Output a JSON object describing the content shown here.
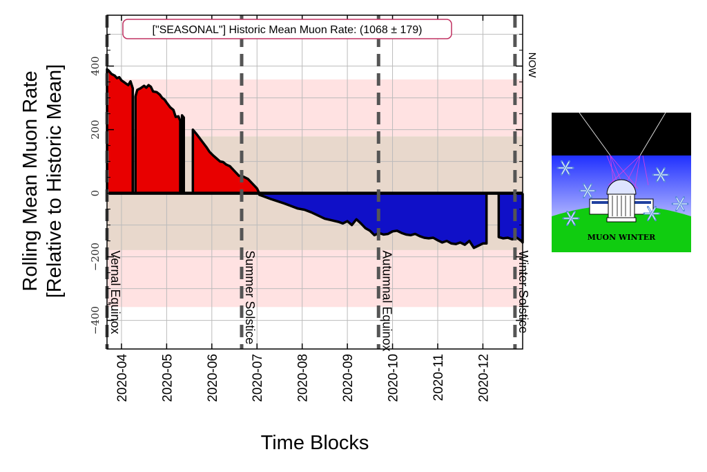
{
  "chart_data": {
    "type": "area",
    "title": "[\"SEASONAL\"] Historic Mean Muon Rate: (1068 ± 179)",
    "xlabel": "Time Blocks",
    "ylabel_line1": "Rolling Mean Muon Rate",
    "ylabel_line2": "[Relative to Historic Mean]",
    "x_tick_labels": [
      "2020-04",
      "2020-05",
      "2020-06",
      "2020-07",
      "2020-08",
      "2020-09",
      "2020-10",
      "2020-11",
      "2020-12"
    ],
    "x_tick_months": [
      3,
      4,
      5,
      6,
      7,
      8,
      9,
      10,
      11
    ],
    "xlim_months": [
      2.68,
      11.88
    ],
    "ylim": [
      -490,
      560
    ],
    "y_ticks": [
      -400,
      -200,
      0,
      200,
      400
    ],
    "y_tick_labels": [
      "−400",
      "−200",
      "0",
      "200",
      "400"
    ],
    "bands": [
      {
        "from": -179,
        "to": 179,
        "color": "#e8d8cc"
      },
      {
        "from": 179,
        "to": 358,
        "color": "#ffe2e2"
      },
      {
        "from": -358,
        "to": -179,
        "color": "#ffe2e2"
      }
    ],
    "markers": [
      {
        "label": "Vernal Equinox",
        "month": 2.68
      },
      {
        "label": "Summer Solstice",
        "month": 5.66
      },
      {
        "label": "Autumnal Equinox",
        "month": 8.69
      },
      {
        "label": "Winter Solstice",
        "month": 11.71
      }
    ],
    "now_label": "NOW",
    "positive_color": "#e80000",
    "negative_color": "#1010c8",
    "grid": true,
    "segments": [
      {
        "x": [
          2.68,
          2.72,
          2.78,
          2.85,
          2.9,
          2.95,
          3.0,
          3.05,
          3.1,
          3.15,
          3.2,
          3.25
        ],
        "y": [
          390,
          385,
          375,
          370,
          362,
          365,
          355,
          350,
          345,
          340,
          352,
          330
        ]
      },
      {
        "x": [
          3.31,
          3.35,
          3.42,
          3.5,
          3.55,
          3.6,
          3.65,
          3.7,
          3.78,
          3.85,
          3.9,
          3.95,
          4.0,
          4.08,
          4.15,
          4.2,
          4.26,
          4.3
        ],
        "y": [
          305,
          325,
          330,
          338,
          332,
          340,
          335,
          320,
          318,
          310,
          300,
          295,
          285,
          270,
          262,
          240,
          242,
          228
        ]
      },
      {
        "x": [
          4.34,
          4.38
        ],
        "y": [
          245,
          238
        ]
      },
      {
        "x": [
          4.58,
          4.65,
          4.72,
          4.8,
          4.88,
          4.95,
          5.02,
          5.1,
          5.18,
          5.25,
          5.32,
          5.4,
          5.5,
          5.6,
          5.7,
          5.8,
          5.9,
          6.0,
          6.05
        ],
        "y": [
          200,
          188,
          175,
          160,
          145,
          130,
          120,
          110,
          100,
          98,
          90,
          85,
          70,
          55,
          52,
          45,
          30,
          15,
          0
        ]
      },
      {
        "x": [
          6.05,
          6.15,
          6.3,
          6.45,
          6.6,
          6.75,
          6.9,
          7.05,
          7.2,
          7.35,
          7.5,
          7.65,
          7.8,
          7.9,
          8.0,
          8.1,
          8.2,
          8.3,
          8.4,
          8.5,
          8.6,
          8.7,
          8.8,
          8.9,
          9.0,
          9.1,
          9.2,
          9.3,
          9.4,
          9.5,
          9.6,
          9.7,
          9.8,
          9.9,
          10.0,
          10.1,
          10.2,
          10.3,
          10.4,
          10.5,
          10.6,
          10.7,
          10.8,
          10.9,
          11.0,
          11.08
        ],
        "y": [
          -5,
          -10,
          -18,
          -25,
          -32,
          -40,
          -48,
          -52,
          -60,
          -70,
          -80,
          -85,
          -90,
          -95,
          -88,
          -100,
          -82,
          -95,
          -110,
          -118,
          -132,
          -125,
          -130,
          -128,
          -120,
          -118,
          -125,
          -130,
          -132,
          -128,
          -135,
          -140,
          -142,
          -140,
          -148,
          -155,
          -150,
          -158,
          -160,
          -155,
          -162,
          -150,
          -172,
          -165,
          -158,
          -158
        ]
      },
      {
        "x": [
          11.35,
          11.45,
          11.55,
          11.65,
          11.75,
          11.85,
          11.88
        ],
        "y": [
          -138,
          -142,
          -140,
          -145,
          -140,
          -150,
          -155
        ]
      }
    ],
    "gaps": [
      [
        3.25,
        3.31
      ],
      [
        4.3,
        4.34
      ],
      [
        4.38,
        4.58
      ],
      [
        11.08,
        11.35
      ]
    ]
  },
  "badge": {
    "caption": "MUON WINTER",
    "sky_color": "#000000",
    "gradient_top": "#2030ff",
    "gradient_bottom": "#ffffff",
    "ground_color": "#10cc10"
  }
}
